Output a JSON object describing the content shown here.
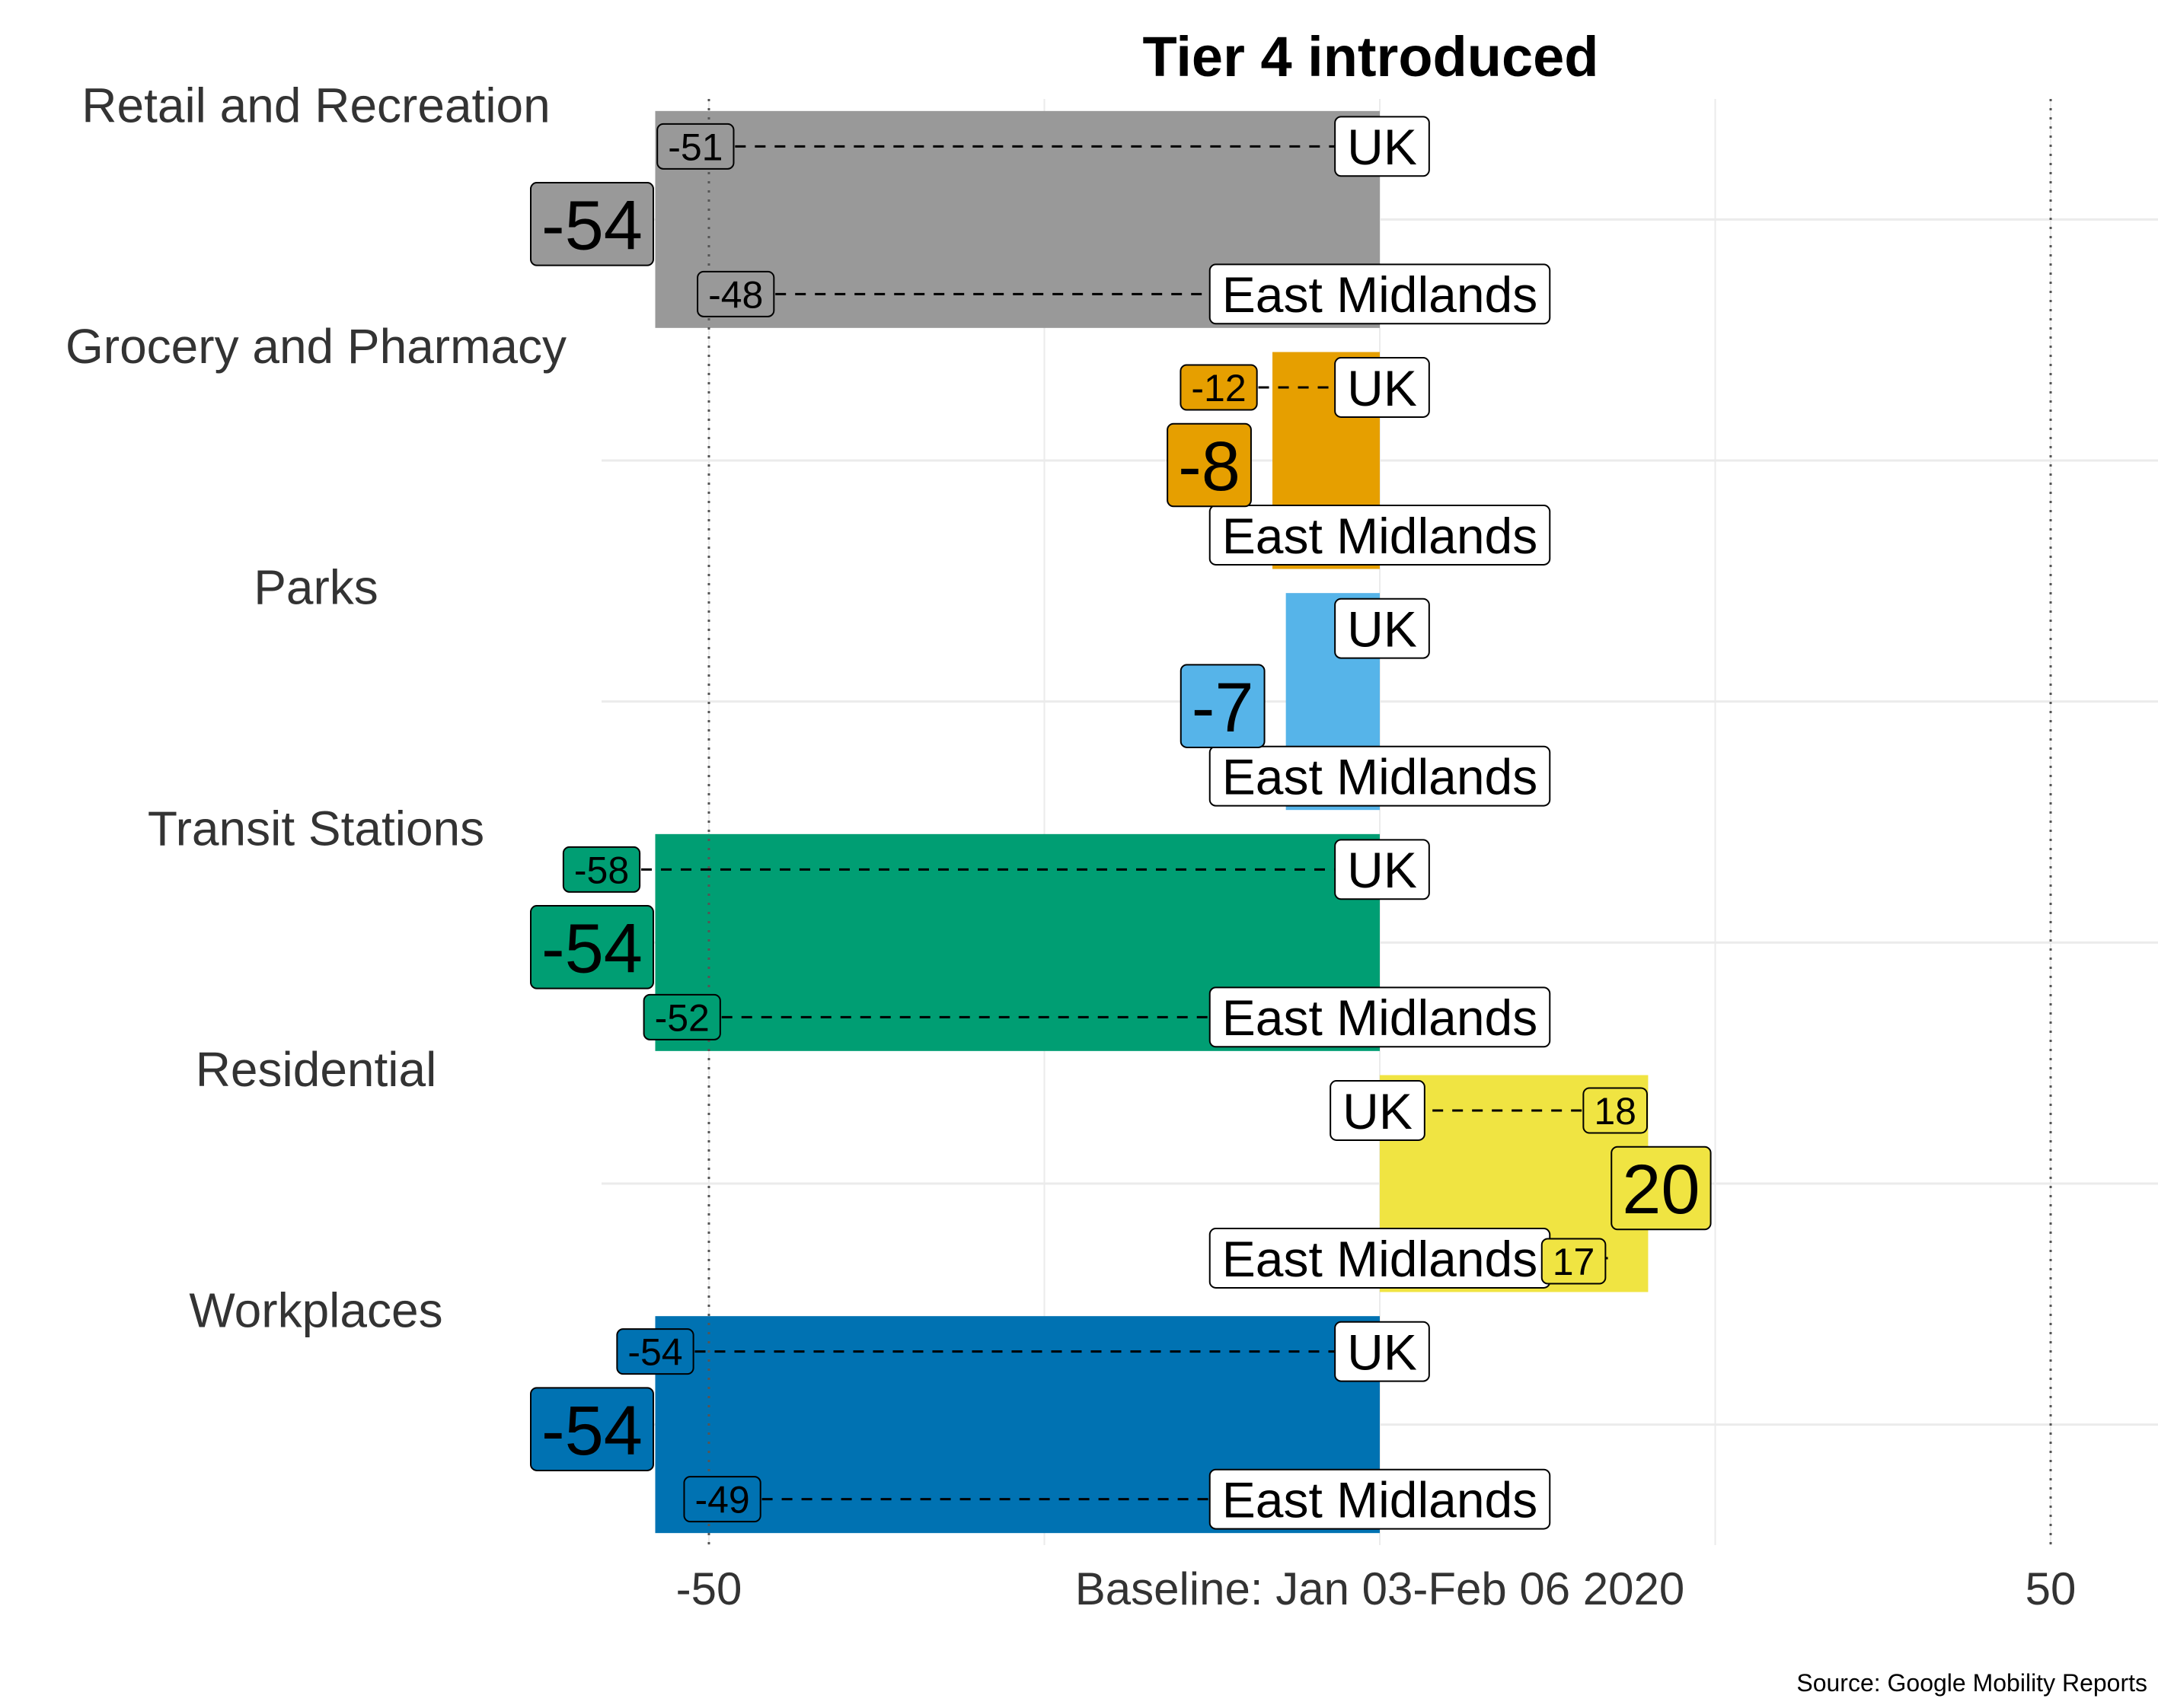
{
  "chart_data": {
    "type": "bar",
    "orientation": "horizontal",
    "title": "Tier 4 introduced",
    "caption": "Source: Google Mobility Reports",
    "xlim": [
      -58,
      58
    ],
    "xticks": [
      {
        "value": -50,
        "label": "-50"
      },
      {
        "value": 0,
        "label": "Baseline: Jan 03-Feb 06 2020"
      },
      {
        "value": 50,
        "label": "50"
      }
    ],
    "reference_lines": [
      -50,
      50
    ],
    "grid": true,
    "legend": "none",
    "series_labels": {
      "uk": "UK",
      "region": "East Midlands"
    },
    "categories": [
      {
        "name": "Retail and Recreation",
        "value": -54,
        "uk": -51,
        "region": -48,
        "color": "#999999"
      },
      {
        "name": "Grocery and Pharmacy",
        "value": -8,
        "uk": -12,
        "region": null,
        "color": "#E69F00"
      },
      {
        "name": "Parks",
        "value": -7,
        "uk": null,
        "region": null,
        "color": "#56B4E9"
      },
      {
        "name": "Transit Stations",
        "value": -54,
        "uk": -58,
        "region": -52,
        "color": "#009E73"
      },
      {
        "name": "Residential",
        "value": 20,
        "uk": 18,
        "region": 17,
        "color": "#F0E442"
      },
      {
        "name": "Workplaces",
        "value": -54,
        "uk": -54,
        "region": -49,
        "color": "#0072B2"
      }
    ]
  }
}
